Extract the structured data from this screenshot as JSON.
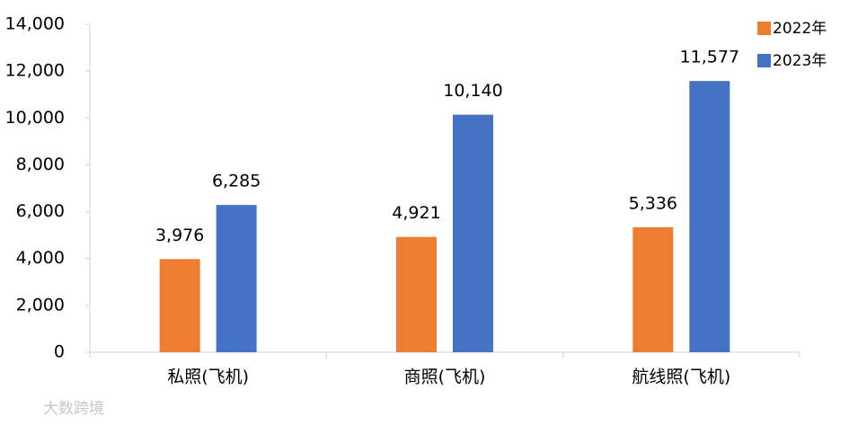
{
  "chart_data": {
    "type": "bar",
    "categories": [
      "私照(飞机)",
      "商照(飞机)",
      "航线照(飞机)"
    ],
    "series": [
      {
        "name": "2022年",
        "color": "#ed7d31",
        "values": [
          3976,
          4921,
          5336
        ],
        "value_labels": [
          "3,976",
          "4,921",
          "5,336"
        ]
      },
      {
        "name": "2023年",
        "color": "#4472c4",
        "values": [
          6285,
          10140,
          11577
        ],
        "value_labels": [
          "6,285",
          "10,140",
          "11,577"
        ]
      }
    ],
    "ylim": [
      0,
      14000
    ],
    "yticks": [
      0,
      {
        "value": 2000,
        "label": "2,000"
      },
      {
        "value": 4000,
        "label": "4,000"
      },
      {
        "value": 6000,
        "label": "6,000"
      },
      {
        "value": 8000,
        "label": "8,000"
      },
      {
        "value": 10000,
        "label": "10,000"
      },
      {
        "value": 12000,
        "label": "12,000"
      },
      {
        "value": 14000,
        "label": "14,000"
      }
    ],
    "grid": false,
    "legend_position": "top-right"
  },
  "watermark": "大数跨境"
}
